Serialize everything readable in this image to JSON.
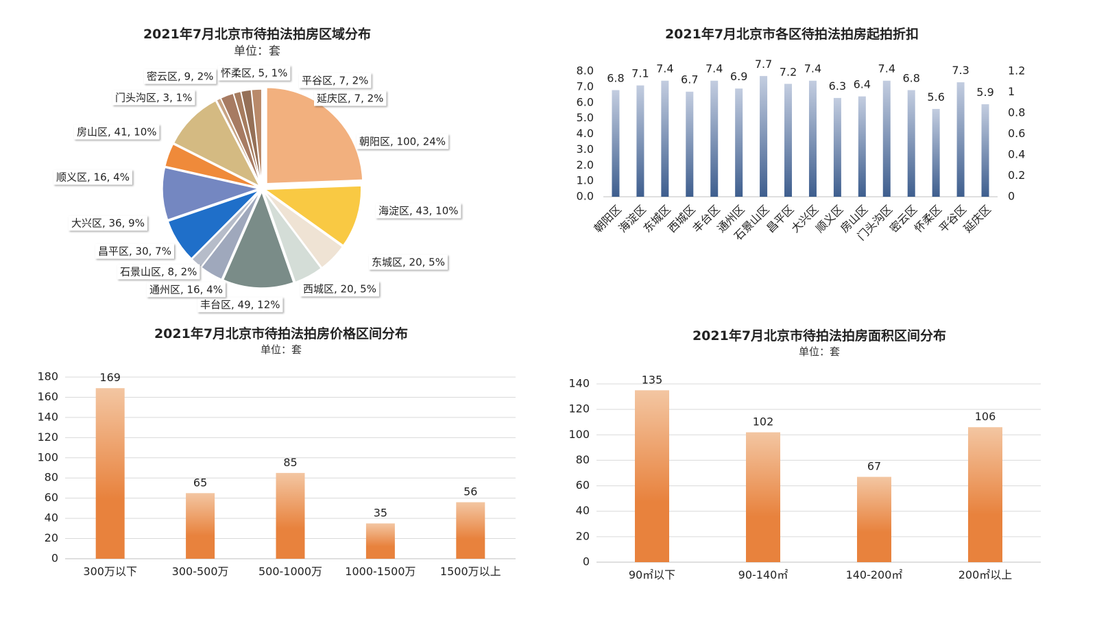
{
  "chart_data": [
    {
      "type": "pie",
      "title": "2021年7月北京市待拍法拍房区域分布",
      "subtitle": "单位：套",
      "slices": [
        {
          "label": "朝阳区, 100, 24%",
          "value": 100,
          "color": "#F2B07E"
        },
        {
          "label": "海淀区, 43, 10%",
          "value": 43,
          "color": "#F9C943"
        },
        {
          "label": "东城区, 20, 5%",
          "value": 20,
          "color": "#EFE3D4"
        },
        {
          "label": "西城区, 20, 5%",
          "value": 20,
          "color": "#D4DDD7"
        },
        {
          "label": "丰台区, 49, 12%",
          "value": 49,
          "color": "#7A8C88"
        },
        {
          "label": "通州区, 16, 4%",
          "value": 16,
          "color": "#9FA8BC"
        },
        {
          "label": "石景山区, 8, 2%",
          "value": 8,
          "color": "#B6BCC9"
        },
        {
          "label": "昌平区, 30, 7%",
          "value": 30,
          "color": "#1F6FC9"
        },
        {
          "label": "大兴区, 36, 9%",
          "value": 36,
          "color": "#7487C1"
        },
        {
          "label": "顺义区, 16, 4%",
          "value": 16,
          "color": "#EF8A3A"
        },
        {
          "label": "房山区, 41, 10%",
          "value": 41,
          "color": "#D4BA82"
        },
        {
          "label": "门头沟区, 3, 1%",
          "value": 3,
          "color": "#C7A383"
        },
        {
          "label": "密云区, 9, 2%",
          "value": 9,
          "color": "#A77B62"
        },
        {
          "label": "怀柔区, 5, 1%",
          "value": 5,
          "color": "#A67C5F"
        },
        {
          "label": "平谷区, 7, 2%",
          "value": 7,
          "color": "#957057"
        },
        {
          "label": "延庆区, 7, 2%",
          "value": 7,
          "color": "#B98A6A"
        }
      ]
    },
    {
      "type": "bar",
      "title": "2021年7月北京市各区待拍法拍房起拍折扣",
      "categories": [
        "朝阳区",
        "海淀区",
        "东城区",
        "西城区",
        "丰台区",
        "通州区",
        "石景山区",
        "昌平区",
        "大兴区",
        "顺义区",
        "房山区",
        "门头沟区",
        "密云区",
        "怀柔区",
        "平谷区",
        "延庆区"
      ],
      "values": [
        6.8,
        7.1,
        7.4,
        6.7,
        7.4,
        6.9,
        7.7,
        7.2,
        7.4,
        6.3,
        6.4,
        7.4,
        6.8,
        5.6,
        7.3,
        5.9
      ],
      "value_labels": [
        "6.8",
        "7.1",
        "7.4",
        "6.7",
        "7.4",
        "6.9",
        "7.7",
        "7.2",
        "7.4",
        "6.3",
        "6.4",
        "7.4",
        "6.8",
        "5.6",
        "7.3",
        "5.9"
      ],
      "ylim": [
        0,
        8
      ],
      "yticks": [
        "0.0",
        "1.0",
        "2.0",
        "3.0",
        "4.0",
        "5.0",
        "6.0",
        "7.0",
        "8.0"
      ],
      "y2lim": [
        0,
        1.2
      ],
      "y2ticks": [
        "0",
        "0.2",
        "0.4",
        "0.6",
        "0.8",
        "1",
        "1.2"
      ],
      "colors": {
        "bar_top": "#C3CDE0",
        "bar_bottom": "#3E5E8E"
      }
    },
    {
      "type": "bar",
      "title": "2021年7月北京市待拍法拍房价格区间分布",
      "subtitle": "单位：套",
      "categories": [
        "300万以下",
        "300-500万",
        "500-1000万",
        "1000-1500万",
        "1500万以上"
      ],
      "values": [
        169,
        65,
        85,
        35,
        56
      ],
      "value_labels": [
        "169",
        "65",
        "85",
        "35",
        "56"
      ],
      "ylim": [
        0,
        180
      ],
      "yticks": [
        "0",
        "20",
        "40",
        "60",
        "80",
        "100",
        "120",
        "140",
        "160",
        "180"
      ],
      "colors": {
        "bar_top": "#F3C6A2",
        "bar_bottom": "#E8823D"
      }
    },
    {
      "type": "bar",
      "title": "2021年7月北京市待拍法拍房面积区间分布",
      "subtitle": "单位：套",
      "categories": [
        "90㎡以下",
        "90-140㎡",
        "140-200㎡",
        "200㎡以上"
      ],
      "values": [
        135,
        102,
        67,
        106
      ],
      "value_labels": [
        "135",
        "102",
        "67",
        "106"
      ],
      "ylim": [
        0,
        140
      ],
      "yticks": [
        "0",
        "20",
        "40",
        "60",
        "80",
        "100",
        "120",
        "140"
      ],
      "colors": {
        "bar_top": "#F3C6A2",
        "bar_bottom": "#E8823D"
      }
    }
  ]
}
